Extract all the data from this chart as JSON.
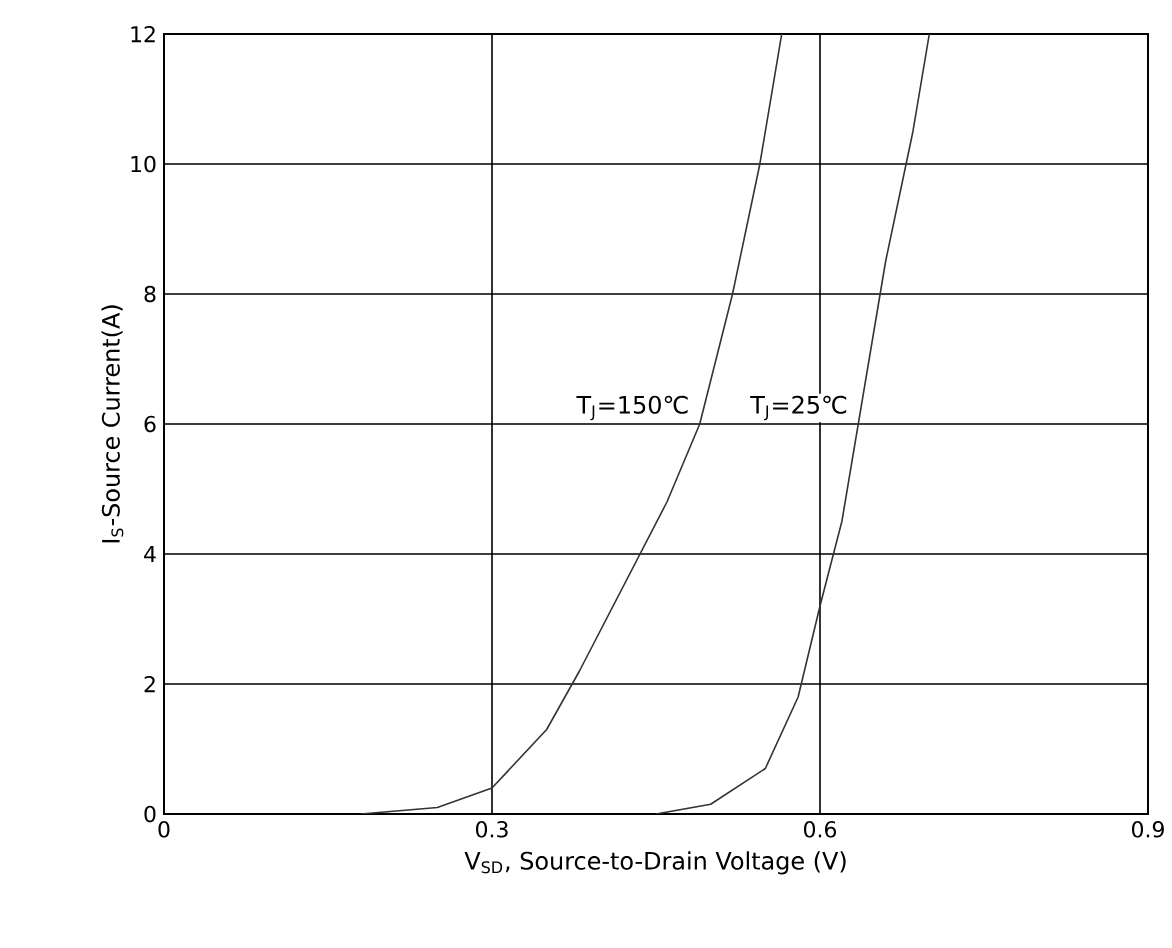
{
  "chart_data": {
    "type": "line",
    "xlabel": "V$_{SD}$, Source-to-Drain Voltage (V)",
    "ylabel": "I$_{S}$-Source Current(A)",
    "xlim": [
      0,
      0.9
    ],
    "ylim": [
      0,
      12
    ],
    "xticks": [
      0,
      {
        "value": 0.3,
        "label": "0.3"
      },
      {
        "value": 0.6,
        "label": "0.6"
      },
      {
        "value": 0.9,
        "label": "0.9"
      }
    ],
    "yticks": [
      0,
      2,
      4,
      6,
      8,
      10,
      12
    ],
    "grid": true,
    "marker": "none",
    "line_style": "solid",
    "series": [
      {
        "color": "#333333",
        "x": [
          0.18,
          0.25,
          0.3,
          0.35,
          0.38,
          0.42,
          0.46,
          0.49,
          0.52,
          0.545,
          0.565
        ],
        "values": [
          0,
          0.1,
          0.4,
          1.3,
          2.2,
          3.5,
          4.8,
          6,
          8,
          10,
          12
        ]
      },
      {
        "color": "#333333",
        "x": [
          0.45,
          0.5,
          0.55,
          0.58,
          0.6,
          0.62,
          0.64,
          0.66,
          0.685,
          0.7
        ],
        "values": [
          0,
          0.15,
          0.7,
          1.8,
          3.2,
          4.5,
          6.5,
          8.5,
          10.5,
          12
        ]
      }
    ],
    "annotations": [
      "T$_{J}$=150℃",
      "T$_{J}$=25℃"
    ]
  }
}
